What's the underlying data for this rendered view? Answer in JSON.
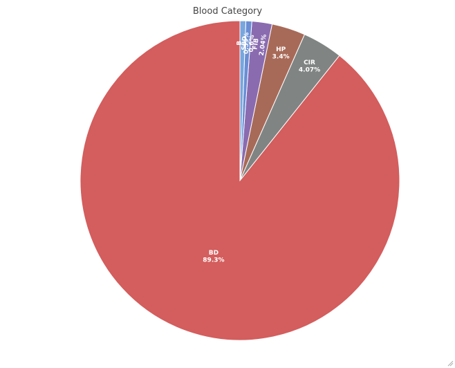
{
  "chart_data": {
    "type": "pie",
    "title": "Blood Category",
    "labels": [
      "BD",
      "CIR",
      "HP",
      "FIB",
      "SBD",
      "B"
    ],
    "values": [
      89.3,
      4.07,
      3.4,
      2.04,
      0.6,
      0.59
    ],
    "display_values": [
      "89.3%",
      "4.07%",
      "3.4%",
      "2.04%",
      "0.6%",
      "0.59%"
    ],
    "colors": [
      "#d45d5d",
      "#808584",
      "#a86a58",
      "#8a6bb0",
      "#6a8ed4",
      "#78a6dd"
    ],
    "start": "12 o'clock",
    "direction": "counterclockwise",
    "legend": "none"
  }
}
